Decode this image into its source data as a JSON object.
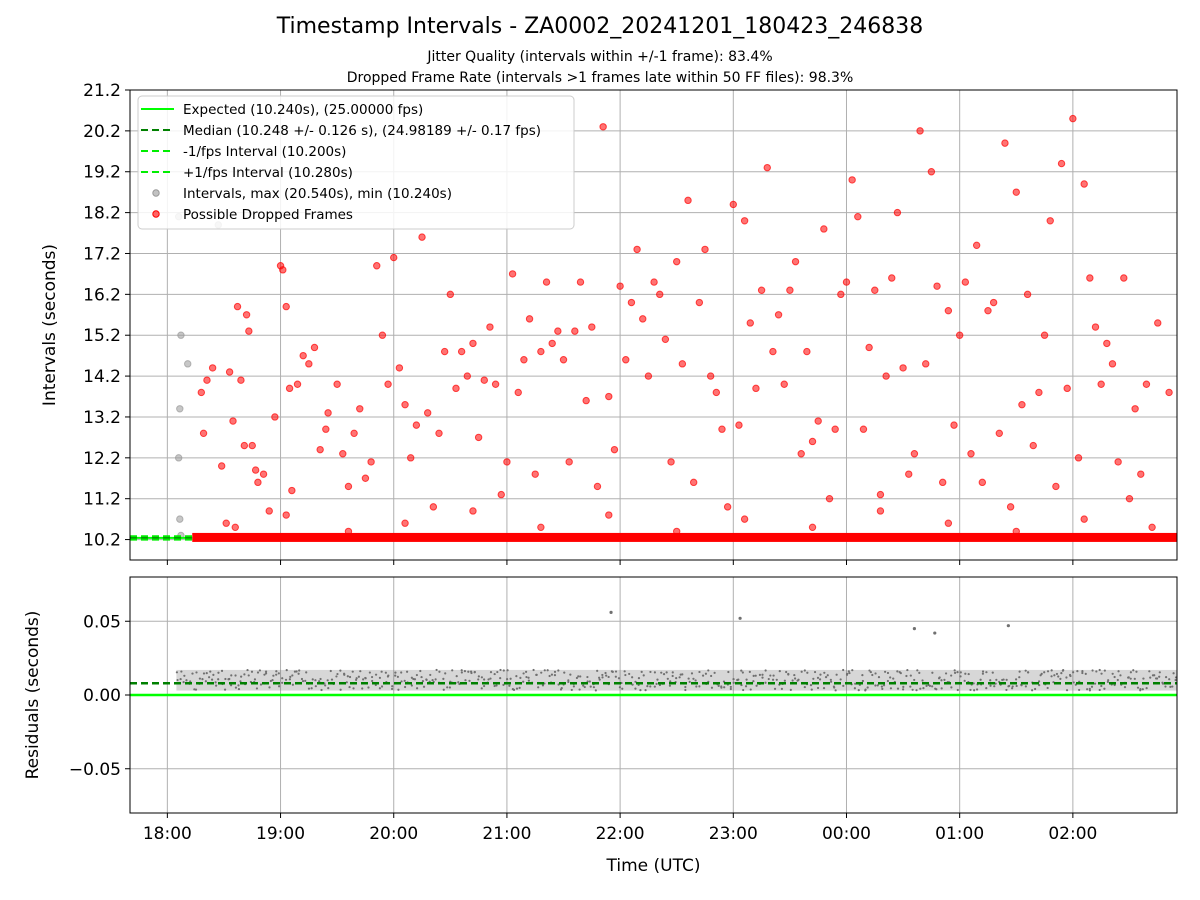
{
  "header": {
    "title": "Timestamp Intervals - ZA0002_20241201_180423_246838",
    "subtitle1": "Jitter Quality (intervals within +/-1 frame): 83.4%",
    "subtitle2": "Dropped Frame Rate (intervals >1 frames late within 50 FF files): 98.3%"
  },
  "colors": {
    "expected": "#00ff00",
    "median": "#008000",
    "fps_bounds": "#00ee00",
    "intervals": "#999999",
    "dropped": "#ff0000",
    "residuals": "#707070",
    "grid": "#b0b0b0"
  },
  "chart_data": [
    {
      "type": "scatter",
      "ylabel": "Intervals (seconds)",
      "xlabel": "",
      "xlim": [
        17.67,
        26.92
      ],
      "ylim": [
        9.7,
        21.2
      ],
      "x_ticks": [
        18,
        19,
        20,
        21,
        22,
        23,
        24,
        25,
        26
      ],
      "y_tick_labels": [
        "10.2",
        "11.2",
        "12.2",
        "13.2",
        "14.2",
        "15.2",
        "16.2",
        "17.2",
        "18.2",
        "19.2",
        "20.2",
        "21.2"
      ],
      "grid": true,
      "legend_placement": "top-left",
      "legend": [
        {
          "label": "Expected (10.240s), (25.00000 fps)",
          "style": "solid",
          "color": "#00ff00"
        },
        {
          "label": "Median (10.248 +/- 0.126 s), (24.98189 +/- 0.17 fps)",
          "style": "dashed",
          "color": "#008000"
        },
        {
          "label": "-1/fps Interval (10.200s)",
          "style": "dashed",
          "color": "#00ee00"
        },
        {
          "label": "+1/fps Interval (10.280s)",
          "style": "dashed",
          "color": "#00ee00"
        },
        {
          "label": "Intervals, max (20.540s), min (10.240s)",
          "style": "marker",
          "color": "#999999"
        },
        {
          "label": "Possible Dropped Frames",
          "style": "marker",
          "color": "#ff0000"
        }
      ],
      "reference_lines": [
        {
          "name": "Expected",
          "y": 10.24
        },
        {
          "name": "Median",
          "y": 10.248
        },
        {
          "name": "-1/fps",
          "y": 10.2
        },
        {
          "name": "+1/fps",
          "y": 10.28
        }
      ],
      "baseline_band": {
        "y": 10.24,
        "x_start": 18.22,
        "x_end": 26.92
      },
      "series": [
        {
          "name": "Intervals",
          "color": "#999999",
          "points": [
            [
              18.1,
              18.1
            ],
            [
              18.12,
              15.2
            ],
            [
              18.18,
              14.5
            ],
            [
              18.11,
              13.4
            ],
            [
              18.1,
              12.2
            ],
            [
              18.11,
              10.7
            ],
            [
              18.12,
              10.3
            ],
            [
              18.45,
              17.9
            ]
          ]
        },
        {
          "name": "Possible Dropped Frames",
          "color": "#ff0000",
          "points": [
            [
              18.3,
              13.8
            ],
            [
              18.32,
              12.8
            ],
            [
              18.35,
              14.1
            ],
            [
              18.4,
              14.4
            ],
            [
              18.48,
              12.0
            ],
            [
              18.52,
              10.6
            ],
            [
              18.55,
              14.3
            ],
            [
              18.58,
              13.1
            ],
            [
              18.62,
              15.9
            ],
            [
              18.65,
              14.1
            ],
            [
              18.68,
              12.5
            ],
            [
              18.7,
              15.7
            ],
            [
              18.72,
              15.3
            ],
            [
              18.75,
              12.5
            ],
            [
              18.78,
              11.9
            ],
            [
              18.8,
              11.6
            ],
            [
              18.85,
              11.8
            ],
            [
              18.9,
              10.9
            ],
            [
              18.95,
              13.2
            ],
            [
              19.0,
              16.9
            ],
            [
              19.02,
              16.8
            ],
            [
              19.05,
              15.9
            ],
            [
              19.08,
              13.9
            ],
            [
              19.1,
              11.4
            ],
            [
              19.15,
              14.0
            ],
            [
              19.2,
              14.7
            ],
            [
              19.25,
              14.5
            ],
            [
              19.3,
              14.9
            ],
            [
              19.35,
              12.4
            ],
            [
              19.4,
              12.9
            ],
            [
              19.42,
              13.3
            ],
            [
              19.5,
              14.0
            ],
            [
              19.55,
              12.3
            ],
            [
              19.6,
              11.5
            ],
            [
              19.65,
              12.8
            ],
            [
              19.7,
              13.4
            ],
            [
              19.75,
              11.7
            ],
            [
              19.8,
              12.1
            ],
            [
              19.85,
              16.9
            ],
            [
              19.9,
              15.2
            ],
            [
              19.95,
              14.0
            ],
            [
              20.0,
              17.1
            ],
            [
              20.05,
              14.4
            ],
            [
              20.1,
              13.5
            ],
            [
              20.15,
              12.2
            ],
            [
              20.2,
              13.0
            ],
            [
              20.25,
              17.6
            ],
            [
              20.3,
              13.3
            ],
            [
              20.35,
              11.0
            ],
            [
              20.4,
              12.8
            ],
            [
              20.45,
              14.8
            ],
            [
              20.5,
              16.2
            ],
            [
              20.55,
              13.9
            ],
            [
              20.6,
              14.8
            ],
            [
              20.65,
              14.2
            ],
            [
              20.7,
              15.0
            ],
            [
              20.75,
              12.7
            ],
            [
              20.8,
              14.1
            ],
            [
              20.85,
              15.4
            ],
            [
              20.9,
              14.0
            ],
            [
              20.95,
              11.3
            ],
            [
              21.0,
              12.1
            ],
            [
              21.05,
              16.7
            ],
            [
              21.1,
              13.8
            ],
            [
              21.15,
              14.6
            ],
            [
              21.2,
              15.6
            ],
            [
              21.25,
              11.8
            ],
            [
              21.3,
              14.8
            ],
            [
              21.35,
              16.5
            ],
            [
              21.4,
              15.0
            ],
            [
              21.45,
              15.3
            ],
            [
              21.5,
              14.6
            ],
            [
              21.55,
              12.1
            ],
            [
              21.6,
              15.3
            ],
            [
              21.65,
              16.5
            ],
            [
              21.7,
              13.6
            ],
            [
              21.75,
              15.4
            ],
            [
              21.8,
              11.5
            ],
            [
              21.85,
              20.3
            ],
            [
              21.9,
              13.7
            ],
            [
              21.95,
              12.4
            ],
            [
              22.0,
              16.4
            ],
            [
              22.05,
              14.6
            ],
            [
              22.1,
              16.0
            ],
            [
              22.15,
              17.3
            ],
            [
              22.2,
              15.6
            ],
            [
              22.25,
              14.2
            ],
            [
              22.3,
              16.5
            ],
            [
              22.35,
              16.2
            ],
            [
              22.4,
              15.1
            ],
            [
              22.45,
              12.1
            ],
            [
              22.5,
              17.0
            ],
            [
              22.55,
              14.5
            ],
            [
              22.6,
              18.5
            ],
            [
              22.65,
              11.6
            ],
            [
              22.7,
              16.0
            ],
            [
              22.75,
              17.3
            ],
            [
              22.8,
              14.2
            ],
            [
              22.85,
              13.8
            ],
            [
              22.9,
              12.9
            ],
            [
              22.95,
              11.0
            ],
            [
              23.0,
              18.4
            ],
            [
              23.05,
              13.0
            ],
            [
              23.1,
              18.0
            ],
            [
              23.15,
              15.5
            ],
            [
              23.2,
              13.9
            ],
            [
              23.25,
              16.3
            ],
            [
              23.3,
              19.3
            ],
            [
              23.35,
              14.8
            ],
            [
              23.4,
              15.7
            ],
            [
              23.45,
              14.0
            ],
            [
              23.5,
              16.3
            ],
            [
              23.55,
              17.0
            ],
            [
              23.6,
              12.3
            ],
            [
              23.65,
              14.8
            ],
            [
              23.7,
              12.6
            ],
            [
              23.75,
              13.1
            ],
            [
              23.8,
              17.8
            ],
            [
              23.85,
              11.2
            ],
            [
              23.9,
              12.9
            ],
            [
              23.95,
              16.2
            ],
            [
              24.0,
              16.5
            ],
            [
              24.05,
              19.0
            ],
            [
              24.1,
              18.1
            ],
            [
              24.15,
              12.9
            ],
            [
              24.2,
              14.9
            ],
            [
              24.25,
              16.3
            ],
            [
              24.3,
              11.3
            ],
            [
              24.35,
              14.2
            ],
            [
              24.4,
              16.6
            ],
            [
              24.45,
              18.2
            ],
            [
              24.5,
              14.4
            ],
            [
              24.55,
              11.8
            ],
            [
              24.6,
              12.3
            ],
            [
              24.65,
              20.2
            ],
            [
              24.7,
              14.5
            ],
            [
              24.75,
              19.2
            ],
            [
              24.8,
              16.4
            ],
            [
              24.85,
              11.6
            ],
            [
              24.9,
              15.8
            ],
            [
              24.95,
              13.0
            ],
            [
              25.0,
              15.2
            ],
            [
              25.05,
              16.5
            ],
            [
              25.1,
              12.3
            ],
            [
              25.15,
              17.4
            ],
            [
              25.2,
              11.6
            ],
            [
              25.25,
              15.8
            ],
            [
              25.3,
              16.0
            ],
            [
              25.35,
              12.8
            ],
            [
              25.4,
              19.9
            ],
            [
              25.45,
              11.0
            ],
            [
              25.5,
              18.7
            ],
            [
              25.55,
              13.5
            ],
            [
              25.6,
              16.2
            ],
            [
              25.65,
              12.5
            ],
            [
              25.7,
              13.8
            ],
            [
              25.75,
              15.2
            ],
            [
              25.8,
              18.0
            ],
            [
              25.85,
              11.5
            ],
            [
              25.9,
              19.4
            ],
            [
              25.95,
              13.9
            ],
            [
              26.0,
              20.5
            ],
            [
              26.05,
              12.2
            ],
            [
              26.1,
              18.9
            ],
            [
              26.15,
              16.6
            ],
            [
              26.2,
              15.4
            ],
            [
              26.25,
              14.0
            ],
            [
              26.3,
              15.0
            ],
            [
              26.35,
              14.5
            ],
            [
              26.4,
              12.1
            ],
            [
              26.45,
              16.6
            ],
            [
              26.5,
              11.2
            ],
            [
              26.55,
              13.4
            ],
            [
              26.6,
              11.8
            ],
            [
              26.65,
              14.0
            ],
            [
              26.75,
              15.5
            ],
            [
              26.85,
              13.8
            ],
            [
              18.6,
              10.5
            ],
            [
              19.05,
              10.8
            ],
            [
              19.6,
              10.4
            ],
            [
              20.1,
              10.6
            ],
            [
              20.7,
              10.9
            ],
            [
              21.3,
              10.5
            ],
            [
              21.9,
              10.8
            ],
            [
              22.5,
              10.4
            ],
            [
              23.1,
              10.7
            ],
            [
              23.7,
              10.5
            ],
            [
              24.3,
              10.9
            ],
            [
              24.9,
              10.6
            ],
            [
              25.5,
              10.4
            ],
            [
              26.1,
              10.7
            ],
            [
              26.7,
              10.5
            ]
          ]
        }
      ]
    },
    {
      "type": "scatter",
      "ylabel": "Residuals (seconds)",
      "xlabel": "Time (UTC)",
      "xlim": [
        17.67,
        26.92
      ],
      "ylim": [
        -0.08,
        0.08
      ],
      "x_ticks": [
        18,
        19,
        20,
        21,
        22,
        23,
        24,
        25,
        26
      ],
      "x_tick_labels": [
        "18:00",
        "19:00",
        "20:00",
        "21:00",
        "22:00",
        "23:00",
        "00:00",
        "01:00",
        "02:00"
      ],
      "y_tick_labels": [
        "0.05",
        "0.00",
        "−0.05"
      ],
      "grid": true,
      "reference_lines": [
        {
          "name": "Expected",
          "y": 0.0
        },
        {
          "name": "Median",
          "y": 0.008
        }
      ],
      "residual_band": {
        "y_min": 0.003,
        "y_max": 0.017,
        "x_start": 18.08,
        "x_end": 26.92
      },
      "outliers": [
        [
          21.92,
          0.056
        ],
        [
          23.06,
          0.052
        ],
        [
          24.6,
          0.045
        ],
        [
          24.78,
          0.042
        ],
        [
          25.43,
          0.047
        ]
      ]
    }
  ]
}
